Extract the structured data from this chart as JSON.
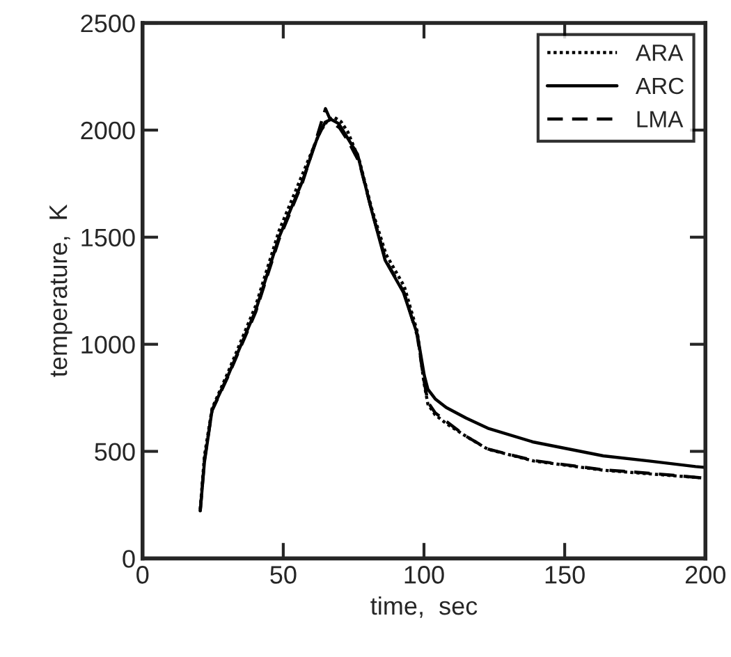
{
  "chart_data": {
    "type": "line",
    "xlabel": "time,  sec",
    "ylabel": "temperature,  K",
    "xlim": [
      0,
      200
    ],
    "xticks": [
      0,
      50,
      100,
      150,
      200
    ],
    "ylim": [
      0,
      2500
    ],
    "yticks": [
      0,
      500,
      1000,
      1500,
      2000,
      2500
    ],
    "grid": false,
    "legend": "top right",
    "series": [
      {
        "name": "ARA",
        "color": "#000000",
        "line_style": "dotted",
        "x": [
          20.5,
          22,
          24.7,
          30.4,
          40.2,
          48.5,
          56.7,
          63,
          66,
          68,
          70.5,
          73,
          77,
          81.5,
          86.5,
          93,
          97.6,
          100,
          101.4,
          104,
          107.9,
          115,
          122.7,
          139,
          163.7,
          180,
          200
        ],
        "values": [
          230,
          480,
          700,
          870,
          1180,
          1530,
          1790,
          1990,
          2050,
          2060,
          2040,
          1990,
          1860,
          1630,
          1420,
          1270,
          1060,
          820,
          720,
          670,
          630,
          570,
          510,
          455,
          412,
          395,
          375
        ]
      },
      {
        "name": "ARC",
        "color": "#000000",
        "line_style": "solid",
        "x": [
          20.5,
          22,
          24.7,
          30.4,
          40.2,
          48.5,
          56.7,
          62,
          64.9,
          67,
          69.7,
          73,
          76.4,
          81.3,
          86.2,
          92.7,
          97.6,
          100.1,
          101.4,
          104,
          107.9,
          115,
          122.7,
          139,
          163.7,
          180,
          196.5,
          200
        ],
        "values": [
          222,
          450,
          693,
          855,
          1158,
          1500,
          1758,
          1960,
          2037,
          2050,
          2030,
          1960,
          1887,
          1629,
          1392,
          1242,
          1048,
          855,
          790,
          745,
          705,
          655,
          608,
          543,
          479,
          455,
          429,
          425
        ]
      },
      {
        "name": "LMA",
        "color": "#000000",
        "line_style": "dashed",
        "x": [
          20.5,
          22,
          24.7,
          30.4,
          40.2,
          48.5,
          56.7,
          62,
          65,
          67,
          70,
          73,
          77,
          81.5,
          86.5,
          93,
          97.6,
          100,
          101.4,
          104,
          107.9,
          115,
          122.7,
          139,
          163.7,
          180,
          200
        ],
        "values": [
          220,
          460,
          690,
          850,
          1150,
          1490,
          1750,
          1970,
          2100,
          2040,
          2010,
          1950,
          1850,
          1620,
          1390,
          1240,
          1040,
          830,
          730,
          680,
          640,
          570,
          511,
          457,
          414,
          398,
          375
        ]
      }
    ]
  }
}
